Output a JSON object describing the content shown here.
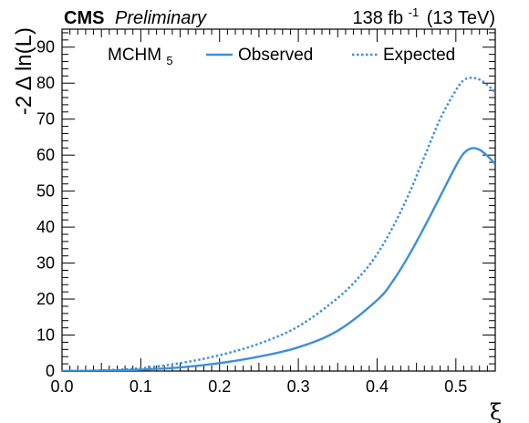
{
  "header": {
    "experiment": "CMS",
    "status": "Preliminary",
    "lumi_value": "138 fb",
    "lumi_exponent": "-1",
    "energy": "(13 TeV)"
  },
  "chart_data": {
    "type": "line",
    "title": "",
    "xlabel": "ξ",
    "ylabel": "-2 Δ ln(L)",
    "xlim": [
      0.0,
      0.55
    ],
    "ylim": [
      0,
      95
    ],
    "xticks": [
      "0.0",
      "0.1",
      "0.2",
      "0.3",
      "0.4",
      "0.5"
    ],
    "yticks": [
      "0",
      "10",
      "20",
      "30",
      "40",
      "50",
      "60",
      "70",
      "80",
      "90"
    ],
    "grid": false,
    "model_label": {
      "text": "MCHM",
      "subscript": "5"
    },
    "legend_position": "top",
    "series": [
      {
        "name": "Observed",
        "style": "solid",
        "color": "#3d8fd9",
        "x": [
          0.0,
          0.05,
          0.1,
          0.15,
          0.2,
          0.25,
          0.3,
          0.35,
          0.4,
          0.42,
          0.44,
          0.46,
          0.48,
          0.5,
          0.51,
          0.52,
          0.53,
          0.54,
          0.55
        ],
        "y": [
          0.0,
          0.1,
          0.4,
          1.0,
          2.2,
          4.0,
          6.6,
          11.2,
          19.7,
          25.0,
          32.0,
          40.0,
          48.5,
          57.0,
          60.5,
          61.9,
          61.5,
          59.8,
          57.5
        ]
      },
      {
        "name": "Expected",
        "style": "dotted",
        "color": "#3d8fd9",
        "x": [
          0.0,
          0.05,
          0.1,
          0.15,
          0.2,
          0.25,
          0.3,
          0.35,
          0.38,
          0.4,
          0.42,
          0.44,
          0.46,
          0.48,
          0.5,
          0.51,
          0.52,
          0.53,
          0.54,
          0.55
        ],
        "y": [
          0.0,
          0.2,
          0.8,
          2.2,
          4.4,
          7.6,
          12.4,
          20.3,
          26.8,
          32.5,
          40.0,
          49.0,
          59.5,
          70.0,
          78.0,
          80.8,
          81.5,
          81.0,
          79.5,
          77.5
        ]
      }
    ]
  }
}
